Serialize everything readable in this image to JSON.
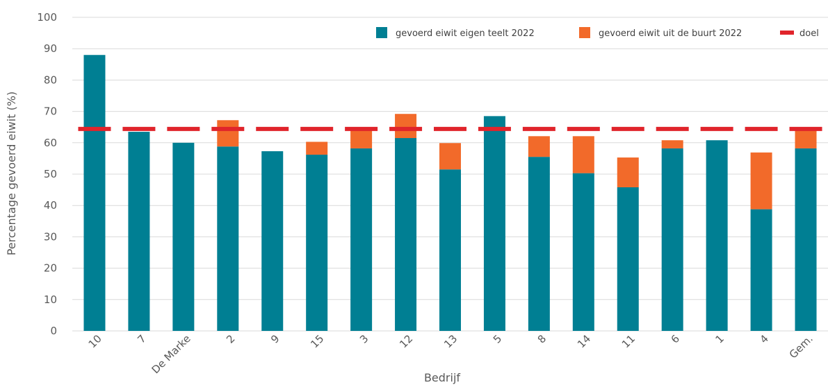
{
  "chart_data": {
    "type": "bar",
    "stacked": true,
    "xlabel": "Bedrijf",
    "ylabel": "Percentage gevoerd eiwit (%)",
    "ylim": [
      0,
      100
    ],
    "yticks": [
      "0",
      "10",
      "20",
      "30",
      "40",
      "50",
      "60",
      "70",
      "80",
      "90",
      "100"
    ],
    "grid": true,
    "legend_position": "top-right",
    "categories": [
      "10",
      "7",
      "De Marke",
      "2",
      "9",
      "15",
      "3",
      "12",
      "13",
      "5",
      "8",
      "14",
      "11",
      "6",
      "1",
      "4",
      "Gem."
    ],
    "series": [
      {
        "name": "gevoerd eiwit eigen teelt 2022",
        "color": "#007f93",
        "values": [
          88,
          63.5,
          60,
          58.8,
          57.3,
          56.2,
          58.2,
          61.5,
          51.5,
          68.5,
          55.5,
          50.3,
          45.8,
          58.2,
          60.8,
          38.8,
          58.2
        ]
      },
      {
        "name": "gevoerd eiwit uit de buurt 2022",
        "color": "#f26a2a",
        "values": [
          0,
          0,
          0,
          8.4,
          0,
          4.1,
          6.0,
          7.7,
          8.4,
          0,
          6.6,
          11.8,
          9.5,
          2.6,
          0,
          18.1,
          5.8
        ]
      }
    ],
    "target": {
      "name": "doel",
      "value": 64.4,
      "color": "#e0242b"
    }
  }
}
